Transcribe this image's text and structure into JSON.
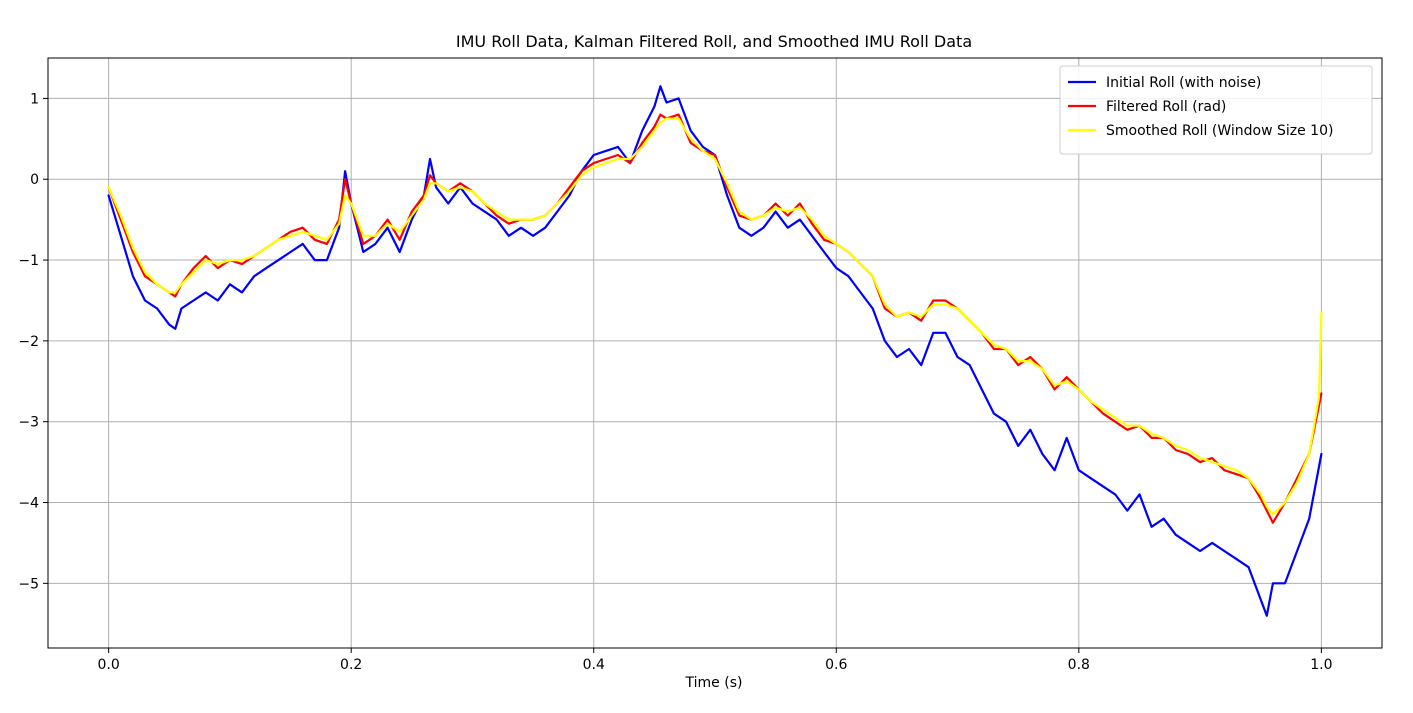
{
  "chart_data": {
    "type": "line",
    "title": "IMU Roll Data, Kalman Filtered Roll, and Smoothed IMU Roll Data",
    "xlabel": "Time (s)",
    "ylabel": "",
    "xlim": [
      -0.05,
      1.05
    ],
    "ylim": [
      -5.8,
      1.5
    ],
    "xticks": [
      0.0,
      0.2,
      0.4,
      0.6,
      0.8,
      1.0
    ],
    "xtick_labels": [
      "0.0",
      "0.2",
      "0.4",
      "0.6",
      "0.8",
      "1.0"
    ],
    "yticks": [
      1,
      0,
      -1,
      -2,
      -3,
      -4,
      -5
    ],
    "ytick_labels": [
      "1",
      "0",
      "−1",
      "−2",
      "−3",
      "−4",
      "−5"
    ],
    "grid": true,
    "legend_position": "top-right",
    "series": [
      {
        "name": "Initial Roll (with noise)",
        "color": "#0000ff",
        "x": [
          0.0,
          0.01,
          0.02,
          0.03,
          0.04,
          0.05,
          0.055,
          0.06,
          0.07,
          0.08,
          0.09,
          0.1,
          0.11,
          0.12,
          0.13,
          0.14,
          0.15,
          0.16,
          0.17,
          0.18,
          0.19,
          0.195,
          0.2,
          0.21,
          0.22,
          0.23,
          0.24,
          0.25,
          0.26,
          0.265,
          0.27,
          0.28,
          0.29,
          0.3,
          0.31,
          0.32,
          0.33,
          0.34,
          0.35,
          0.36,
          0.37,
          0.38,
          0.39,
          0.4,
          0.41,
          0.42,
          0.43,
          0.44,
          0.45,
          0.455,
          0.46,
          0.47,
          0.48,
          0.49,
          0.5,
          0.51,
          0.52,
          0.53,
          0.54,
          0.55,
          0.56,
          0.57,
          0.58,
          0.59,
          0.6,
          0.61,
          0.62,
          0.63,
          0.64,
          0.65,
          0.66,
          0.67,
          0.68,
          0.69,
          0.7,
          0.71,
          0.72,
          0.73,
          0.74,
          0.75,
          0.76,
          0.77,
          0.78,
          0.79,
          0.8,
          0.81,
          0.82,
          0.83,
          0.84,
          0.85,
          0.86,
          0.87,
          0.88,
          0.89,
          0.9,
          0.91,
          0.92,
          0.93,
          0.94,
          0.95,
          0.955,
          0.96,
          0.97,
          0.98,
          0.99,
          1.0
        ],
        "y": [
          -0.2,
          -0.7,
          -1.2,
          -1.5,
          -1.6,
          -1.8,
          -1.85,
          -1.6,
          -1.5,
          -1.4,
          -1.5,
          -1.3,
          -1.4,
          -1.2,
          -1.1,
          -1.0,
          -0.9,
          -0.8,
          -1.0,
          -1.0,
          -0.6,
          0.1,
          -0.3,
          -0.9,
          -0.8,
          -0.6,
          -0.9,
          -0.5,
          -0.2,
          0.25,
          -0.1,
          -0.3,
          -0.1,
          -0.3,
          -0.4,
          -0.5,
          -0.7,
          -0.6,
          -0.7,
          -0.6,
          -0.4,
          -0.2,
          0.1,
          0.3,
          0.35,
          0.4,
          0.2,
          0.6,
          0.9,
          1.15,
          0.95,
          1.0,
          0.6,
          0.4,
          0.3,
          -0.2,
          -0.6,
          -0.7,
          -0.6,
          -0.4,
          -0.6,
          -0.5,
          -0.7,
          -0.9,
          -1.1,
          -1.2,
          -1.4,
          -1.6,
          -2.0,
          -2.2,
          -2.1,
          -2.3,
          -1.9,
          -1.9,
          -2.2,
          -2.3,
          -2.6,
          -2.9,
          -3.0,
          -3.3,
          -3.1,
          -3.4,
          -3.6,
          -3.2,
          -3.6,
          -3.7,
          -3.8,
          -3.9,
          -4.1,
          -3.9,
          -4.3,
          -4.2,
          -4.4,
          -4.5,
          -4.6,
          -4.5,
          -4.6,
          -4.7,
          -4.8,
          -5.2,
          -5.4,
          -5.0,
          -5.0,
          -4.6,
          -4.2,
          -3.4
        ]
      },
      {
        "name": "Filtered Roll (rad)",
        "color": "#ff0000",
        "x": [
          0.0,
          0.01,
          0.02,
          0.03,
          0.04,
          0.05,
          0.055,
          0.06,
          0.07,
          0.08,
          0.09,
          0.1,
          0.11,
          0.12,
          0.13,
          0.14,
          0.15,
          0.16,
          0.17,
          0.18,
          0.19,
          0.195,
          0.2,
          0.21,
          0.22,
          0.23,
          0.24,
          0.25,
          0.26,
          0.265,
          0.27,
          0.28,
          0.29,
          0.3,
          0.31,
          0.32,
          0.33,
          0.34,
          0.35,
          0.36,
          0.37,
          0.38,
          0.39,
          0.4,
          0.41,
          0.42,
          0.43,
          0.44,
          0.45,
          0.455,
          0.46,
          0.47,
          0.48,
          0.49,
          0.5,
          0.51,
          0.52,
          0.53,
          0.54,
          0.55,
          0.56,
          0.57,
          0.58,
          0.59,
          0.6,
          0.61,
          0.62,
          0.63,
          0.64,
          0.65,
          0.66,
          0.67,
          0.68,
          0.69,
          0.7,
          0.71,
          0.72,
          0.73,
          0.74,
          0.75,
          0.76,
          0.77,
          0.78,
          0.79,
          0.8,
          0.81,
          0.82,
          0.83,
          0.84,
          0.85,
          0.86,
          0.87,
          0.88,
          0.89,
          0.9,
          0.91,
          0.92,
          0.93,
          0.94,
          0.95,
          0.955,
          0.96,
          0.97,
          0.98,
          0.99,
          1.0
        ],
        "y": [
          -0.1,
          -0.5,
          -0.9,
          -1.2,
          -1.3,
          -1.4,
          -1.45,
          -1.3,
          -1.1,
          -0.95,
          -1.1,
          -1.0,
          -1.05,
          -0.95,
          -0.85,
          -0.75,
          -0.65,
          -0.6,
          -0.75,
          -0.8,
          -0.5,
          0.0,
          -0.3,
          -0.8,
          -0.7,
          -0.5,
          -0.75,
          -0.4,
          -0.2,
          0.05,
          -0.05,
          -0.15,
          -0.05,
          -0.15,
          -0.3,
          -0.45,
          -0.55,
          -0.5,
          -0.5,
          -0.45,
          -0.3,
          -0.1,
          0.1,
          0.2,
          0.25,
          0.3,
          0.2,
          0.45,
          0.65,
          0.8,
          0.75,
          0.8,
          0.45,
          0.35,
          0.3,
          -0.1,
          -0.45,
          -0.5,
          -0.45,
          -0.3,
          -0.45,
          -0.3,
          -0.55,
          -0.75,
          -0.8,
          -0.9,
          -1.05,
          -1.2,
          -1.6,
          -1.7,
          -1.65,
          -1.75,
          -1.5,
          -1.5,
          -1.6,
          -1.75,
          -1.9,
          -2.1,
          -2.1,
          -2.3,
          -2.2,
          -2.35,
          -2.6,
          -2.45,
          -2.6,
          -2.75,
          -2.9,
          -3.0,
          -3.1,
          -3.05,
          -3.2,
          -3.2,
          -3.35,
          -3.4,
          -3.5,
          -3.45,
          -3.6,
          -3.65,
          -3.7,
          -3.95,
          -4.1,
          -4.25,
          -4.0,
          -3.7,
          -3.4,
          -2.65
        ]
      },
      {
        "name": "Smoothed Roll (Window Size 10)",
        "color": "#ffff00",
        "x": [
          0.0,
          0.01,
          0.02,
          0.03,
          0.04,
          0.05,
          0.055,
          0.06,
          0.07,
          0.08,
          0.09,
          0.1,
          0.11,
          0.12,
          0.13,
          0.14,
          0.15,
          0.16,
          0.17,
          0.18,
          0.19,
          0.195,
          0.2,
          0.21,
          0.22,
          0.23,
          0.24,
          0.25,
          0.26,
          0.265,
          0.27,
          0.28,
          0.29,
          0.3,
          0.31,
          0.32,
          0.33,
          0.34,
          0.35,
          0.36,
          0.37,
          0.38,
          0.39,
          0.4,
          0.41,
          0.42,
          0.43,
          0.44,
          0.45,
          0.455,
          0.46,
          0.47,
          0.48,
          0.49,
          0.5,
          0.51,
          0.52,
          0.53,
          0.54,
          0.55,
          0.56,
          0.57,
          0.58,
          0.59,
          0.6,
          0.61,
          0.62,
          0.63,
          0.64,
          0.65,
          0.66,
          0.67,
          0.68,
          0.69,
          0.7,
          0.71,
          0.72,
          0.73,
          0.74,
          0.75,
          0.76,
          0.77,
          0.78,
          0.79,
          0.8,
          0.81,
          0.82,
          0.83,
          0.84,
          0.85,
          0.86,
          0.87,
          0.88,
          0.89,
          0.9,
          0.91,
          0.92,
          0.93,
          0.94,
          0.95,
          0.955,
          0.96,
          0.97,
          0.98,
          0.99,
          0.998,
          1.0
        ],
        "y": [
          -0.1,
          -0.45,
          -0.85,
          -1.15,
          -1.3,
          -1.4,
          -1.4,
          -1.3,
          -1.15,
          -1.0,
          -1.05,
          -1.0,
          -1.0,
          -0.95,
          -0.85,
          -0.75,
          -0.7,
          -0.65,
          -0.7,
          -0.75,
          -0.55,
          -0.2,
          -0.3,
          -0.7,
          -0.7,
          -0.55,
          -0.65,
          -0.45,
          -0.25,
          -0.05,
          -0.05,
          -0.15,
          -0.1,
          -0.15,
          -0.3,
          -0.4,
          -0.5,
          -0.5,
          -0.5,
          -0.45,
          -0.3,
          -0.15,
          0.05,
          0.15,
          0.2,
          0.25,
          0.25,
          0.4,
          0.6,
          0.7,
          0.75,
          0.75,
          0.5,
          0.35,
          0.25,
          -0.05,
          -0.4,
          -0.5,
          -0.45,
          -0.35,
          -0.4,
          -0.35,
          -0.5,
          -0.7,
          -0.8,
          -0.9,
          -1.05,
          -1.2,
          -1.55,
          -1.7,
          -1.65,
          -1.7,
          -1.55,
          -1.55,
          -1.6,
          -1.75,
          -1.9,
          -2.05,
          -2.1,
          -2.25,
          -2.25,
          -2.35,
          -2.55,
          -2.5,
          -2.6,
          -2.75,
          -2.85,
          -2.95,
          -3.05,
          -3.05,
          -3.15,
          -3.2,
          -3.3,
          -3.35,
          -3.45,
          -3.5,
          -3.55,
          -3.6,
          -3.7,
          -3.9,
          -4.05,
          -4.15,
          -4.0,
          -3.75,
          -3.4,
          -2.7,
          -1.65
        ]
      }
    ]
  }
}
